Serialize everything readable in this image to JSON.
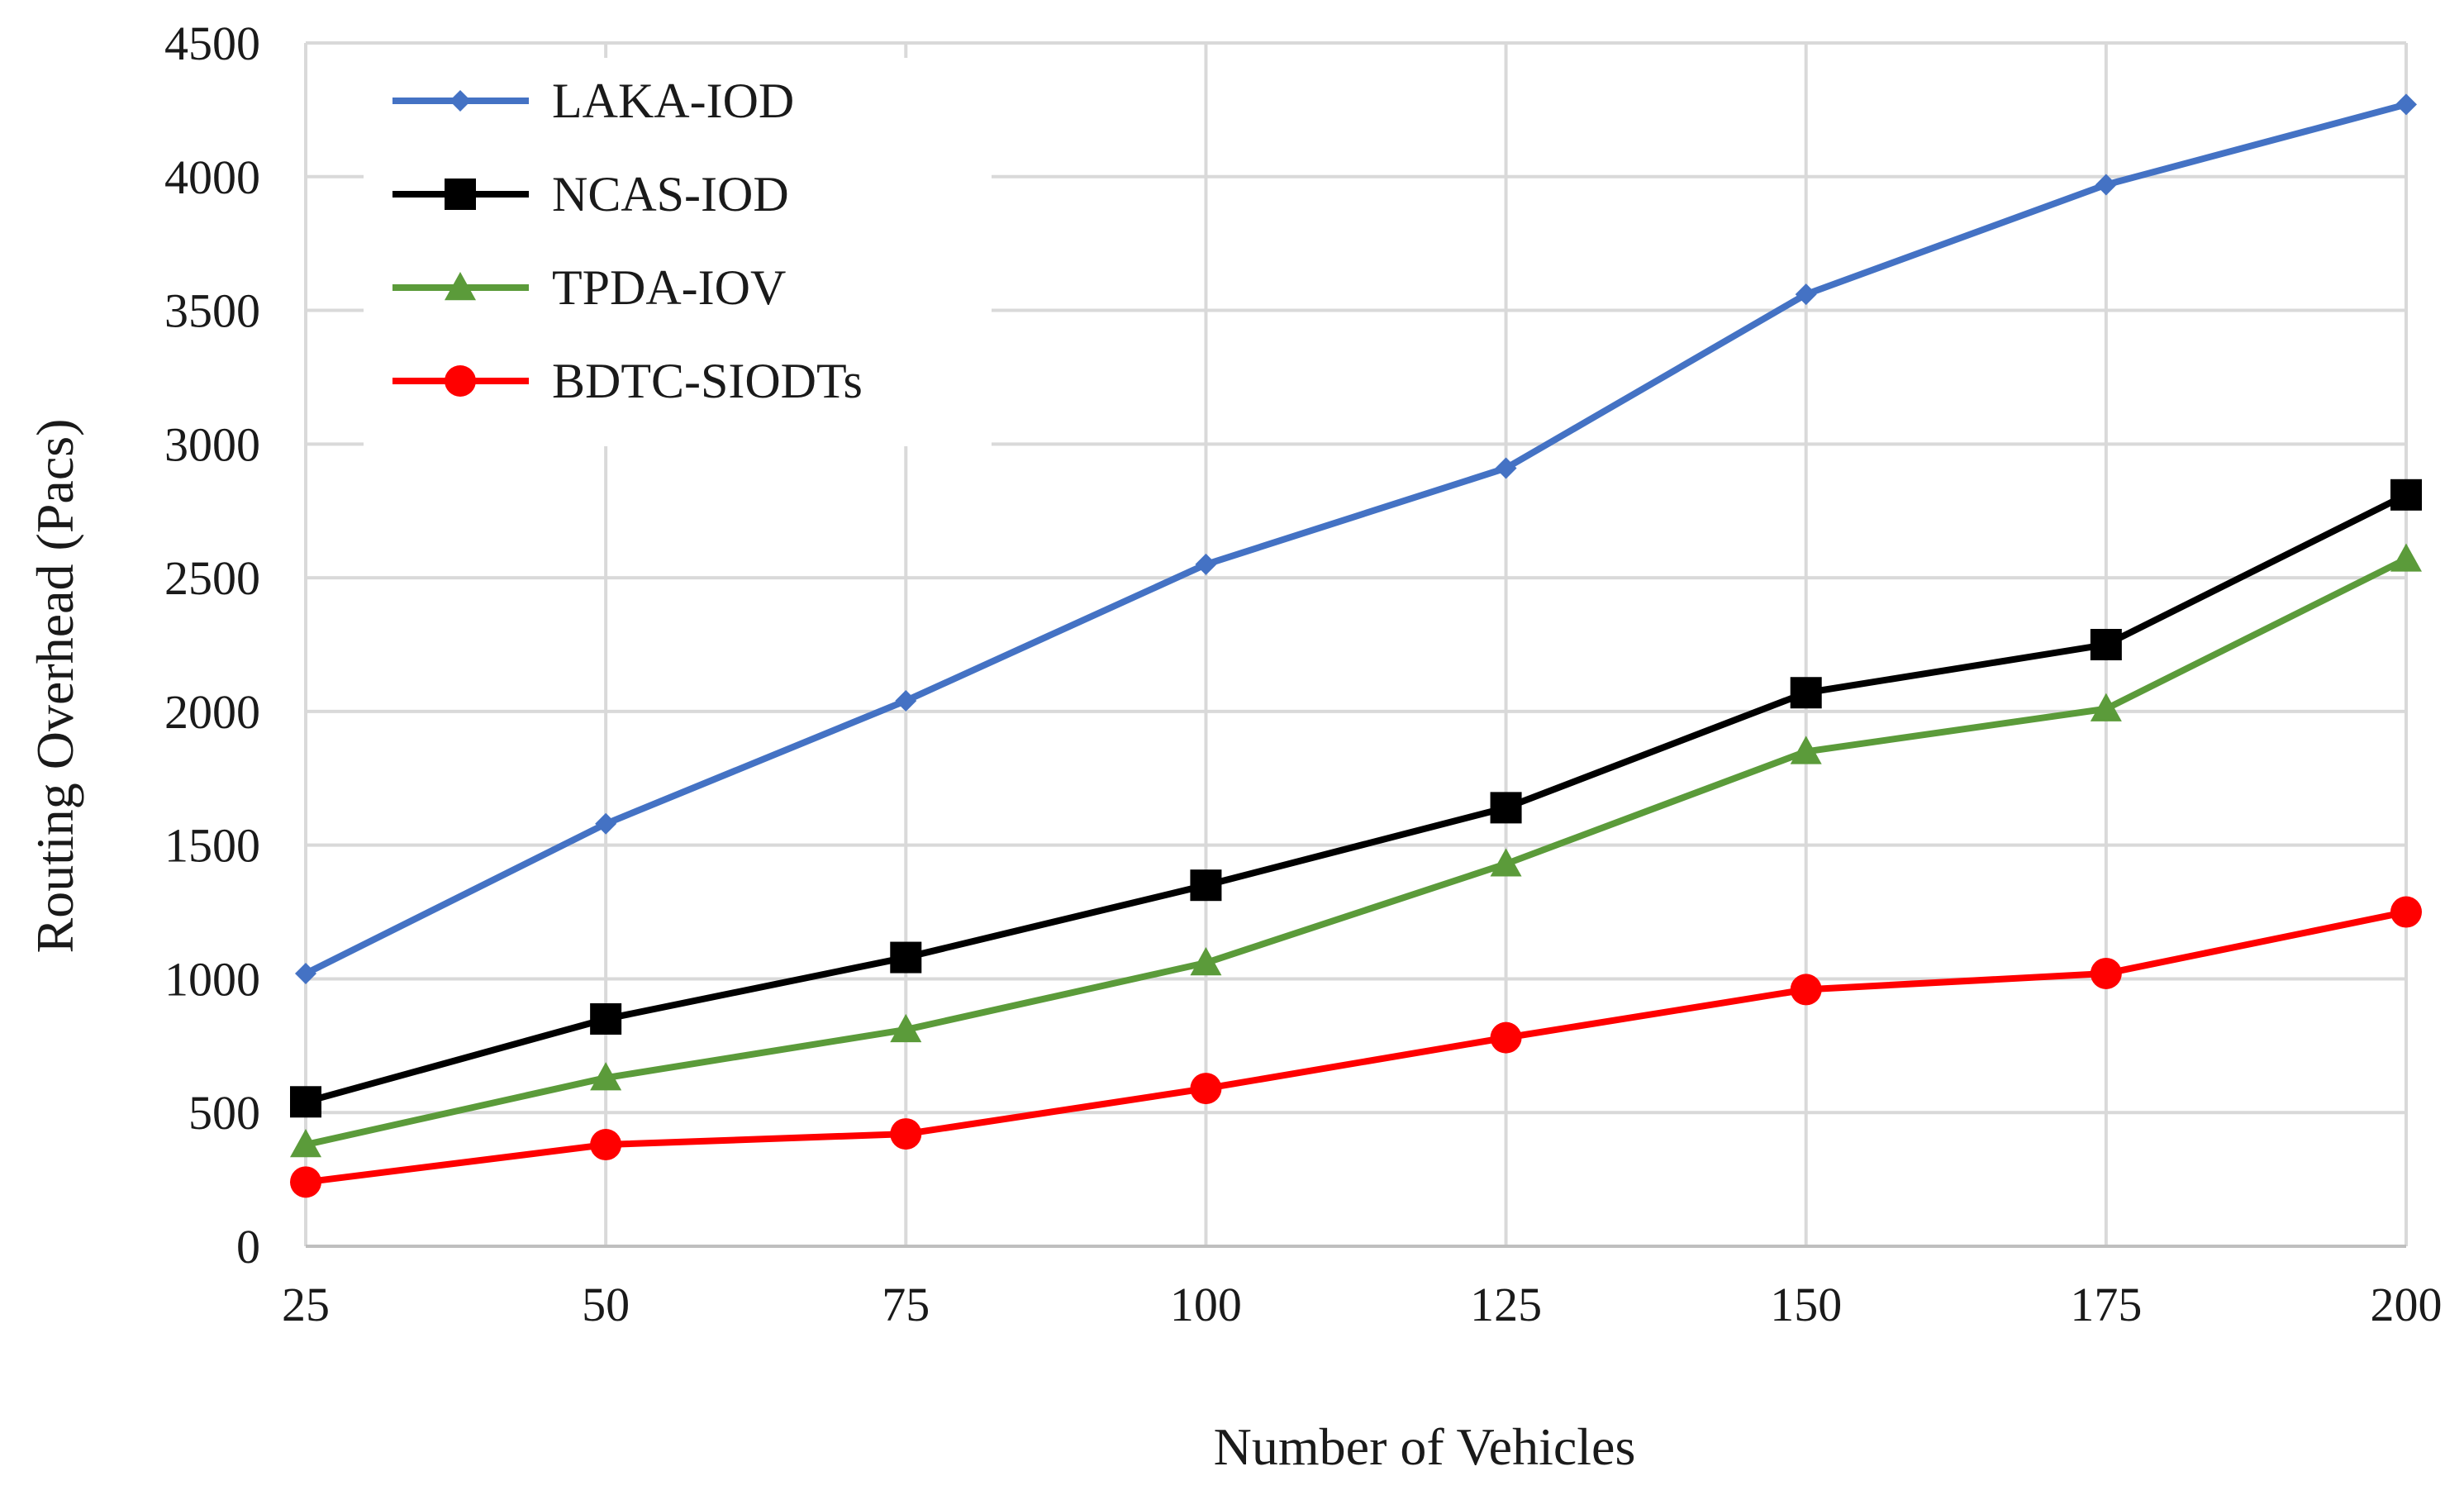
{
  "chart_data": {
    "type": "line",
    "title": "",
    "xlabel": "Number of Vehicles",
    "ylabel": "Routing Overhead (Pacs)",
    "x": [
      25,
      50,
      75,
      100,
      125,
      150,
      175,
      200
    ],
    "x_tick_labels": [
      "25",
      "50",
      "75",
      "100",
      "125",
      "150",
      "175",
      "200"
    ],
    "ylim": [
      0,
      4500
    ],
    "y_ticks": [
      0,
      500,
      1000,
      1500,
      2000,
      2500,
      3000,
      3500,
      4000,
      4500
    ],
    "y_tick_labels": [
      "0",
      "500",
      "1000",
      "1500",
      "2000",
      "2500",
      "3000",
      "3500",
      "4000",
      "4500"
    ],
    "grid": true,
    "legend_position": "top-left",
    "series": [
      {
        "name": "LAKA-IOD",
        "color": "#4472c4",
        "marker": "diamond",
        "values": [
          1020,
          1580,
          2040,
          2550,
          2910,
          3560,
          3970,
          4270
        ]
      },
      {
        "name": "NCAS-IOD",
        "color": "#000000",
        "marker": "square",
        "values": [
          540,
          850,
          1080,
          1350,
          1640,
          2070,
          2250,
          2810
        ]
      },
      {
        "name": "TPDA-IOV",
        "color": "#5b9b3a",
        "marker": "triangle",
        "values": [
          380,
          630,
          810,
          1060,
          1430,
          1850,
          2010,
          2570
        ]
      },
      {
        "name": "BDTC-SIODTs",
        "color": "#ff0000",
        "marker": "circle",
        "values": [
          240,
          380,
          420,
          590,
          780,
          960,
          1020,
          1250
        ]
      }
    ]
  }
}
